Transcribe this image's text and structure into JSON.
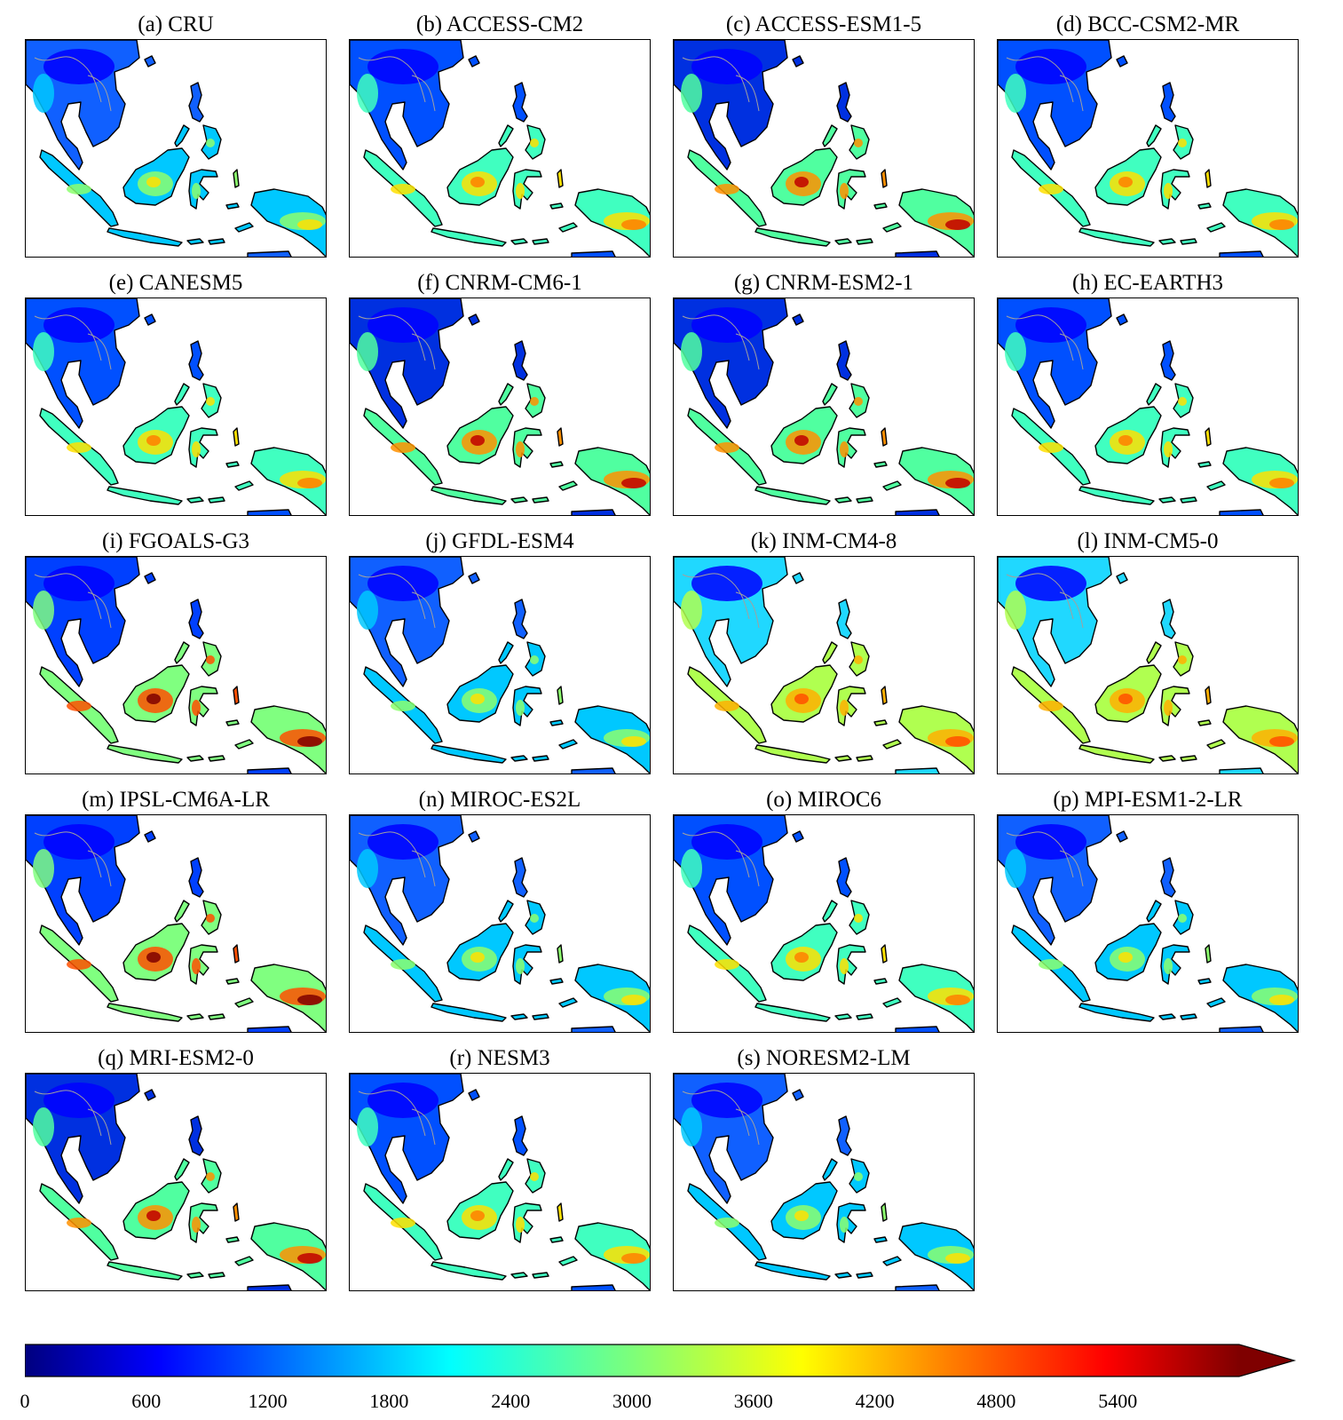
{
  "panels": [
    {
      "id": "a",
      "title": "(a) CRU",
      "intensity": "low"
    },
    {
      "id": "b",
      "title": "(b) ACCESS-CM2",
      "intensity": "mid"
    },
    {
      "id": "c",
      "title": "(c) ACCESS-ESM1-5",
      "intensity": "high"
    },
    {
      "id": "d",
      "title": "(d) BCC-CSM2-MR",
      "intensity": "mid"
    },
    {
      "id": "e",
      "title": "(e) CANESM5",
      "intensity": "mid"
    },
    {
      "id": "f",
      "title": "(f) CNRM-CM6-1",
      "intensity": "high"
    },
    {
      "id": "g",
      "title": "(g) CNRM-ESM2-1",
      "intensity": "high"
    },
    {
      "id": "h",
      "title": "(h) EC-EARTH3",
      "intensity": "mid"
    },
    {
      "id": "i",
      "title": "(i) FGOALS-G3",
      "intensity": "extreme"
    },
    {
      "id": "j",
      "title": "(j) GFDL-ESM4",
      "intensity": "low"
    },
    {
      "id": "k",
      "title": "(k) INM-CM4-8",
      "intensity": "warm"
    },
    {
      "id": "l",
      "title": "(l) INM-CM5-0",
      "intensity": "warm"
    },
    {
      "id": "m",
      "title": "(m) IPSL-CM6A-LR",
      "intensity": "extreme"
    },
    {
      "id": "n",
      "title": "(n) MIROC-ES2L",
      "intensity": "low"
    },
    {
      "id": "o",
      "title": "(o) MIROC6",
      "intensity": "mid"
    },
    {
      "id": "p",
      "title": "(p) MPI-ESM1-2-LR",
      "intensity": "low"
    },
    {
      "id": "q",
      "title": "(q) MRI-ESM2-0",
      "intensity": "high"
    },
    {
      "id": "r",
      "title": "(r) NESM3",
      "intensity": "mid"
    },
    {
      "id": "s",
      "title": "(s) NORESM2-LM",
      "intensity": "low"
    }
  ],
  "colorbar": {
    "min": 0,
    "max": 6000,
    "extend": "max",
    "colormap": "jet",
    "ticks": [
      "0",
      "600",
      "1200",
      "1800",
      "2400",
      "3000",
      "3600",
      "4200",
      "4800",
      "5400"
    ]
  },
  "colors": {
    "dark_blue": "#00007f",
    "blue": "#0000ff",
    "azure": "#0080ff",
    "cyan": "#00ffff",
    "green": "#7dff7a",
    "yellow": "#ffff00",
    "orange": "#ff8000",
    "red": "#ff0000",
    "dark_red": "#7f0000",
    "coastline": "#000000",
    "borders": "#a0a0a0"
  }
}
